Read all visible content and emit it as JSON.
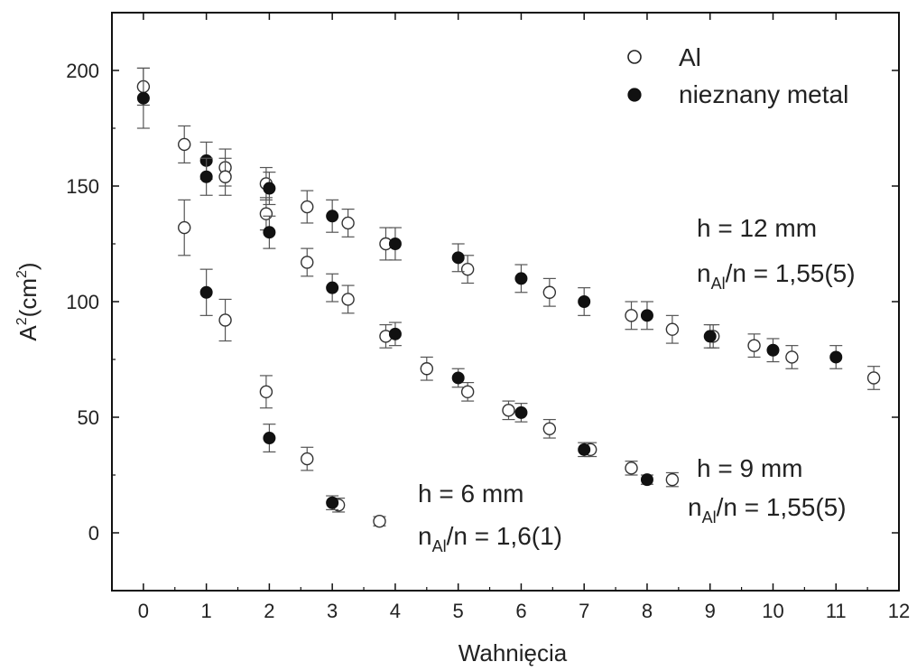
{
  "chart_data": {
    "type": "scatter",
    "xlabel": "Wahnięcia",
    "ylabel": {
      "base": "A",
      "sup": "2",
      "rest": "(cm",
      "sup2": "2",
      "close": ")"
    },
    "xlim": [
      -0.5,
      12
    ],
    "ylim": [
      -25,
      225
    ],
    "x_ticks": [
      0,
      1,
      2,
      3,
      4,
      5,
      6,
      7,
      8,
      9,
      10,
      11,
      12
    ],
    "y_ticks": [
      0,
      50,
      100,
      150,
      200
    ],
    "legend": {
      "position": "top-right",
      "entries": [
        {
          "label": "Al",
          "marker": "open-circle"
        },
        {
          "label": "nieznany metal",
          "marker": "filled-circle"
        }
      ]
    },
    "series": [
      {
        "name": "Al",
        "marker": "open-circle",
        "points": [
          {
            "x": 0,
            "y": 193,
            "err": 8
          },
          {
            "x": 0.65,
            "y": 168,
            "err": 8
          },
          {
            "x": 0.65,
            "y": 132,
            "err": 12
          },
          {
            "x": 1.3,
            "y": 158,
            "err": 8
          },
          {
            "x": 1.3,
            "y": 154,
            "err": 8
          },
          {
            "x": 1.3,
            "y": 92,
            "err": 9
          },
          {
            "x": 1.95,
            "y": 151,
            "err": 7
          },
          {
            "x": 1.95,
            "y": 138,
            "err": 7
          },
          {
            "x": 1.95,
            "y": 61,
            "err": 7
          },
          {
            "x": 2.6,
            "y": 141,
            "err": 7
          },
          {
            "x": 2.6,
            "y": 117,
            "err": 6
          },
          {
            "x": 2.6,
            "y": 32,
            "err": 5
          },
          {
            "x": 3.25,
            "y": 134,
            "err": 6
          },
          {
            "x": 3.25,
            "y": 101,
            "err": 6
          },
          {
            "x": 3.1,
            "y": 12,
            "err": 3
          },
          {
            "x": 3.85,
            "y": 125,
            "err": 7
          },
          {
            "x": 3.85,
            "y": 85,
            "err": 5
          },
          {
            "x": 3.75,
            "y": 5,
            "err": 2
          },
          {
            "x": 4.5,
            "y": 71,
            "err": 5
          },
          {
            "x": 5.15,
            "y": 114,
            "err": 6
          },
          {
            "x": 5.15,
            "y": 61,
            "err": 4
          },
          {
            "x": 5.8,
            "y": 53,
            "err": 4
          },
          {
            "x": 6.45,
            "y": 104,
            "err": 6
          },
          {
            "x": 6.45,
            "y": 45,
            "err": 4
          },
          {
            "x": 7.1,
            "y": 36,
            "err": 3
          },
          {
            "x": 7.75,
            "y": 94,
            "err": 6
          },
          {
            "x": 7.75,
            "y": 28,
            "err": 3
          },
          {
            "x": 8.4,
            "y": 88,
            "err": 6
          },
          {
            "x": 8.4,
            "y": 23,
            "err": 3
          },
          {
            "x": 9.05,
            "y": 85,
            "err": 5
          },
          {
            "x": 9.7,
            "y": 81,
            "err": 5
          },
          {
            "x": 10.3,
            "y": 76,
            "err": 5
          },
          {
            "x": 11.6,
            "y": 67,
            "err": 5
          }
        ]
      },
      {
        "name": "nieznany metal",
        "marker": "filled-circle",
        "points": [
          {
            "x": 0,
            "y": 188,
            "err": 13
          },
          {
            "x": 1,
            "y": 161,
            "err": 8
          },
          {
            "x": 1,
            "y": 154,
            "err": 8
          },
          {
            "x": 1,
            "y": 104,
            "err": 10
          },
          {
            "x": 2,
            "y": 149,
            "err": 7
          },
          {
            "x": 2,
            "y": 130,
            "err": 7
          },
          {
            "x": 2,
            "y": 41,
            "err": 6
          },
          {
            "x": 3,
            "y": 137,
            "err": 7
          },
          {
            "x": 3,
            "y": 106,
            "err": 6
          },
          {
            "x": 3,
            "y": 13,
            "err": 3
          },
          {
            "x": 4,
            "y": 125,
            "err": 7
          },
          {
            "x": 4,
            "y": 86,
            "err": 5
          },
          {
            "x": 5,
            "y": 119,
            "err": 6
          },
          {
            "x": 5,
            "y": 67,
            "err": 4
          },
          {
            "x": 6,
            "y": 110,
            "err": 6
          },
          {
            "x": 6,
            "y": 52,
            "err": 4
          },
          {
            "x": 7,
            "y": 100,
            "err": 6
          },
          {
            "x": 7,
            "y": 36,
            "err": 3
          },
          {
            "x": 8,
            "y": 94,
            "err": 6
          },
          {
            "x": 8,
            "y": 23,
            "err": 2
          },
          {
            "x": 9,
            "y": 85,
            "err": 5
          },
          {
            "x": 10,
            "y": 79,
            "err": 5
          },
          {
            "x": 11,
            "y": 76,
            "err": 5
          }
        ]
      }
    ],
    "annotations": [
      {
        "line1": "h = 12 mm",
        "line2_pre": "n",
        "line2_sub": "Al",
        "line2_post": "/n = 1,55(5)"
      },
      {
        "line1": "h = 9 mm",
        "line2_pre": "n",
        "line2_sub": "Al",
        "line2_post": "/n = 1,55(5)"
      },
      {
        "line1": "h = 6 mm",
        "line2_pre": "n",
        "line2_sub": "Al",
        "line2_post": "/n = 1,6(1)"
      }
    ],
    "colors": {
      "ink": "#222222",
      "errorbar": "#555555",
      "frame": "#111111"
    }
  }
}
